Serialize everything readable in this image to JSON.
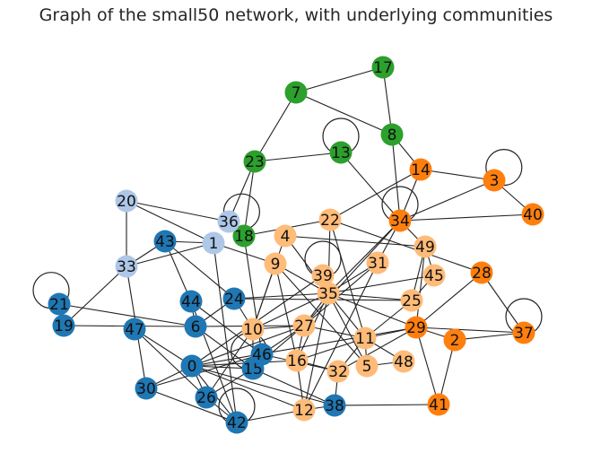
{
  "title": "Graph of the small50 network, with underlying communities",
  "communities": {
    "green": {
      "color": "#2ca02c",
      "nodes": [
        "7",
        "17",
        "8",
        "13",
        "23",
        "18"
      ]
    },
    "orange": {
      "color": "#ff7f0e",
      "nodes": [
        "14",
        "3",
        "40",
        "34",
        "28",
        "37",
        "29",
        "2",
        "41"
      ]
    },
    "light_orange": {
      "color": "#ffbb78",
      "nodes": [
        "22",
        "4",
        "49",
        "9",
        "31",
        "39",
        "45",
        "35",
        "25",
        "10",
        "27",
        "11",
        "16",
        "32",
        "5",
        "48",
        "12"
      ]
    },
    "light_blue": {
      "color": "#aec7e8",
      "nodes": [
        "20",
        "36",
        "1",
        "33"
      ]
    },
    "blue": {
      "color": "#1f77b4",
      "nodes": [
        "43",
        "21",
        "19",
        "44",
        "24",
        "6",
        "47",
        "46",
        "15",
        "0",
        "30",
        "26",
        "42",
        "38"
      ]
    }
  },
  "edges": [
    [
      "17",
      "7"
    ],
    [
      "17",
      "8"
    ],
    [
      "7",
      "23"
    ],
    [
      "7",
      "8"
    ],
    [
      "8",
      "14"
    ],
    [
      "8",
      "34"
    ],
    [
      "13",
      "13"
    ],
    [
      "13",
      "23"
    ],
    [
      "13",
      "34"
    ],
    [
      "23",
      "36"
    ],
    [
      "23",
      "18"
    ],
    [
      "14",
      "3"
    ],
    [
      "14",
      "22"
    ],
    [
      "14",
      "34"
    ],
    [
      "3",
      "3"
    ],
    [
      "3",
      "34"
    ],
    [
      "3",
      "40"
    ],
    [
      "34",
      "34"
    ],
    [
      "34",
      "40"
    ],
    [
      "34",
      "49"
    ],
    [
      "34",
      "35"
    ],
    [
      "34",
      "27"
    ],
    [
      "34",
      "31"
    ],
    [
      "22",
      "18"
    ],
    [
      "22",
      "35"
    ],
    [
      "22",
      "11"
    ],
    [
      "22",
      "28"
    ],
    [
      "20",
      "36"
    ],
    [
      "20",
      "33"
    ],
    [
      "20",
      "1"
    ],
    [
      "36",
      "36"
    ],
    [
      "36",
      "18"
    ],
    [
      "1",
      "43"
    ],
    [
      "1",
      "33"
    ],
    [
      "1",
      "9"
    ],
    [
      "1",
      "42"
    ],
    [
      "43",
      "33"
    ],
    [
      "43",
      "44"
    ],
    [
      "43",
      "24"
    ],
    [
      "33",
      "19"
    ],
    [
      "33",
      "30"
    ],
    [
      "18",
      "46"
    ],
    [
      "4",
      "35"
    ],
    [
      "4",
      "49"
    ],
    [
      "4",
      "10"
    ],
    [
      "49",
      "45"
    ],
    [
      "49",
      "25"
    ],
    [
      "49",
      "29"
    ],
    [
      "9",
      "35"
    ],
    [
      "9",
      "10"
    ],
    [
      "9",
      "5"
    ],
    [
      "9",
      "16"
    ],
    [
      "28",
      "29"
    ],
    [
      "28",
      "37"
    ],
    [
      "37",
      "37"
    ],
    [
      "2",
      "29"
    ],
    [
      "2",
      "37"
    ],
    [
      "29",
      "37"
    ],
    [
      "29",
      "41"
    ],
    [
      "29",
      "11"
    ],
    [
      "29",
      "32"
    ],
    [
      "29",
      "35"
    ],
    [
      "29",
      "0"
    ],
    [
      "41",
      "2"
    ],
    [
      "41",
      "38"
    ],
    [
      "35",
      "39"
    ],
    [
      "35",
      "31"
    ],
    [
      "35",
      "45"
    ],
    [
      "35",
      "25"
    ],
    [
      "35",
      "24"
    ],
    [
      "35",
      "10"
    ],
    [
      "35",
      "27"
    ],
    [
      "35",
      "11"
    ],
    [
      "35",
      "5"
    ],
    [
      "35",
      "12"
    ],
    [
      "35",
      "16"
    ],
    [
      "39",
      "39"
    ],
    [
      "39",
      "0"
    ],
    [
      "31",
      "27"
    ],
    [
      "31",
      "12"
    ],
    [
      "27",
      "10"
    ],
    [
      "27",
      "11"
    ],
    [
      "27",
      "6"
    ],
    [
      "27",
      "46"
    ],
    [
      "27",
      "16"
    ],
    [
      "27",
      "15"
    ],
    [
      "27",
      "0"
    ],
    [
      "11",
      "5"
    ],
    [
      "11",
      "32"
    ],
    [
      "11",
      "16"
    ],
    [
      "5",
      "48"
    ],
    [
      "48",
      "11"
    ],
    [
      "32",
      "16"
    ],
    [
      "32",
      "38"
    ],
    [
      "12",
      "16"
    ],
    [
      "12",
      "0"
    ],
    [
      "12",
      "42"
    ],
    [
      "12",
      "38"
    ],
    [
      "38",
      "0"
    ],
    [
      "38",
      "15"
    ],
    [
      "21",
      "21"
    ],
    [
      "21",
      "19"
    ],
    [
      "19",
      "6"
    ],
    [
      "21",
      "6"
    ],
    [
      "24",
      "6"
    ],
    [
      "24",
      "10"
    ],
    [
      "44",
      "6"
    ],
    [
      "44",
      "46"
    ],
    [
      "44",
      "42"
    ],
    [
      "6",
      "15"
    ],
    [
      "47",
      "0"
    ],
    [
      "47",
      "26"
    ],
    [
      "46",
      "46"
    ],
    [
      "46",
      "30"
    ],
    [
      "46",
      "15"
    ],
    [
      "46",
      "32"
    ],
    [
      "15",
      "0"
    ],
    [
      "15",
      "26"
    ],
    [
      "0",
      "30"
    ],
    [
      "0",
      "42"
    ],
    [
      "0",
      "26"
    ],
    [
      "30",
      "42"
    ],
    [
      "26",
      "42"
    ],
    [
      "42",
      "42"
    ],
    [
      "10",
      "26"
    ],
    [
      "10",
      "15"
    ],
    [
      "16",
      "0"
    ],
    [
      "45",
      "25"
    ],
    [
      "25",
      "11"
    ],
    [
      "24",
      "25"
    ]
  ]
}
